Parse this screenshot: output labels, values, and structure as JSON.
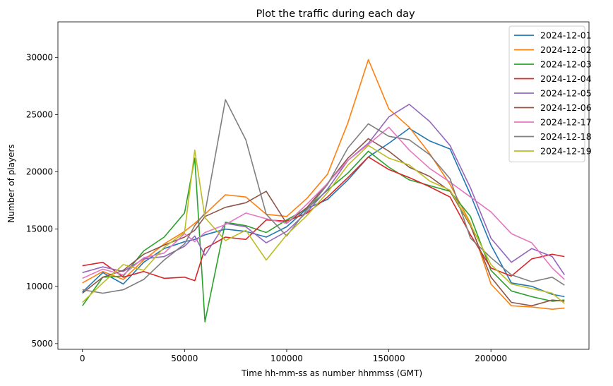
{
  "chart_data": {
    "type": "line",
    "title": "Plot the traffic during each day",
    "xlabel": "Time hh-mm-ss as number hhmmss (GMT)",
    "ylabel": "Number of players",
    "xlim": [
      -12000,
      248000
    ],
    "ylim": [
      4500,
      33100
    ],
    "xticks": [
      0,
      50000,
      100000,
      150000,
      200000
    ],
    "yticks": [
      5000,
      10000,
      15000,
      20000,
      25000,
      30000
    ],
    "grid": false,
    "legend_position": "top-right",
    "x": [
      0,
      10000,
      20000,
      30000,
      40000,
      50000,
      55000,
      60000,
      70000,
      80000,
      90000,
      100000,
      110000,
      120000,
      130000,
      140000,
      150000,
      160000,
      170000,
      180000,
      190000,
      200000,
      210000,
      220000,
      230000,
      236000
    ],
    "series": [
      {
        "name": "2024-12-01",
        "color": "#1f77b4",
        "values": [
          9500,
          11200,
          10200,
          12100,
          13300,
          13900,
          14100,
          14500,
          15000,
          14800,
          14300,
          15200,
          16800,
          17600,
          19300,
          21300,
          22500,
          23800,
          22700,
          22000,
          18000,
          13600,
          10300,
          10000,
          9300,
          9100
        ]
      },
      {
        "name": "2024-12-02",
        "color": "#ff7f0e",
        "values": [
          10300,
          11300,
          10600,
          12300,
          13700,
          14800,
          15500,
          16300,
          18000,
          17800,
          16300,
          16100,
          17700,
          19800,
          24300,
          29800,
          25500,
          23900,
          21600,
          18900,
          15500,
          10200,
          8300,
          8200,
          8000,
          8100
        ]
      },
      {
        "name": "2024-12-03",
        "color": "#2ca02c",
        "values": [
          8300,
          10800,
          10900,
          13100,
          14300,
          16400,
          21200,
          6900,
          15600,
          15300,
          14700,
          15800,
          16800,
          18400,
          19900,
          21800,
          20400,
          19300,
          18800,
          18300,
          16100,
          11400,
          9600,
          9100,
          8700,
          8800
        ]
      },
      {
        "name": "2024-12-04",
        "color": "#d62728",
        "values": [
          11800,
          12100,
          10800,
          11300,
          10700,
          10800,
          10500,
          13300,
          14300,
          14100,
          15800,
          15700,
          16400,
          17800,
          19500,
          21300,
          20200,
          19500,
          18700,
          17800,
          14500,
          11600,
          10900,
          12400,
          12800,
          12600
        ]
      },
      {
        "name": "2024-12-05",
        "color": "#9467bd",
        "values": [
          11200,
          11700,
          11300,
          12400,
          12600,
          13500,
          14400,
          12700,
          15500,
          15200,
          13800,
          14800,
          16500,
          18500,
          21000,
          22500,
          24800,
          25900,
          24400,
          22300,
          18600,
          14200,
          12100,
          13300,
          12600,
          11000
        ]
      },
      {
        "name": "2024-12-06",
        "color": "#8c564b",
        "values": [
          9400,
          10800,
          11400,
          12800,
          13600,
          14300,
          14900,
          16100,
          16900,
          17300,
          18300,
          15500,
          16900,
          19000,
          21200,
          22900,
          21800,
          20400,
          19600,
          18300,
          15300,
          10800,
          8600,
          8300,
          8800,
          8700
        ]
      },
      {
        "name": "2024-12-17",
        "color": "#e377c2",
        "values": [
          10700,
          11500,
          11000,
          12500,
          12900,
          14600,
          13900,
          14700,
          15400,
          16400,
          15900,
          15500,
          17200,
          19000,
          21000,
          22400,
          23900,
          21900,
          20300,
          19100,
          17800,
          16500,
          14600,
          13800,
          11600,
          10600
        ]
      },
      {
        "name": "2024-12-18",
        "color": "#7f7f7f",
        "values": [
          9700,
          9400,
          9700,
          10600,
          12300,
          13700,
          15300,
          16400,
          26300,
          22800,
          16300,
          14400,
          16700,
          18900,
          22100,
          24200,
          23100,
          22800,
          21500,
          19400,
          14200,
          12500,
          11000,
          10400,
          10800,
          10100
        ]
      },
      {
        "name": "2024-12-19",
        "color": "#bcbd22",
        "values": [
          8600,
          10300,
          11900,
          11400,
          13400,
          14700,
          21900,
          16000,
          14000,
          14900,
          12300,
          14500,
          16200,
          18200,
          20600,
          22300,
          21200,
          20600,
          19200,
          18400,
          15400,
          11900,
          10200,
          9800,
          9400,
          8500
        ]
      }
    ]
  }
}
